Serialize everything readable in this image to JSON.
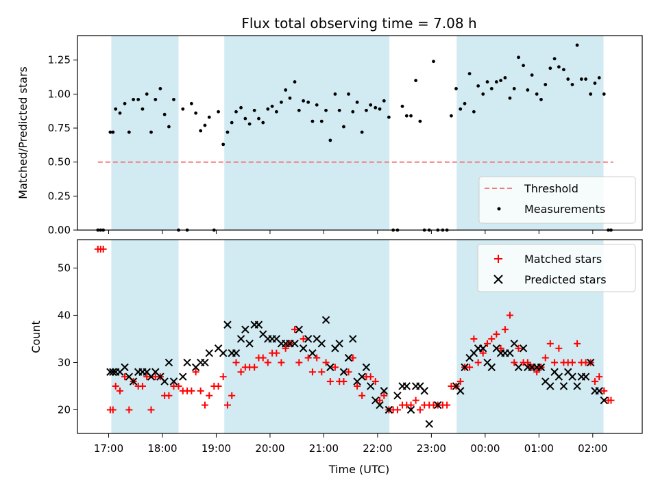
{
  "chart_data": {
    "title": "Flux total observing time = 7.08 h",
    "xlabel": "Time (UTC)",
    "x_unit": "hours (UTC, continuing past 24 into next day)",
    "xlim": [
      16.42,
      26.92
    ],
    "x_ticks": [
      {
        "value": 17,
        "label": "17:00"
      },
      {
        "value": 18,
        "label": "18:00"
      },
      {
        "value": 19,
        "label": "19:00"
      },
      {
        "value": 20,
        "label": "20:00"
      },
      {
        "value": 21,
        "label": "21:00"
      },
      {
        "value": 22,
        "label": "22:00"
      },
      {
        "value": 23,
        "label": "23:00"
      },
      {
        "value": 24,
        "label": "00:00"
      },
      {
        "value": 25,
        "label": "01:00"
      },
      {
        "value": 26,
        "label": "02:00"
      }
    ],
    "shaded_intervals": [
      [
        17.05,
        18.3
      ],
      [
        19.15,
        22.22
      ],
      [
        23.47,
        26.2
      ]
    ],
    "shade_color": "#add8e6",
    "panels": [
      {
        "type": "scatter",
        "ylabel": "Matched/Predicted stars",
        "ylim": [
          0,
          1.43
        ],
        "y_ticks": [
          "0.00",
          "0.25",
          "0.50",
          "0.75",
          "1.00",
          "1.25"
        ],
        "threshold": {
          "name": "Threshold",
          "value": 0.5,
          "x_range": [
            16.8,
            26.38
          ],
          "color": "#f08080"
        },
        "legend": {
          "position": "lower right",
          "entries": [
            "Threshold",
            "Measurements"
          ]
        },
        "series": [
          {
            "name": "Measurements",
            "color": "#000000",
            "x": [
              16.8,
              16.85,
              16.9,
              17.03,
              17.08,
              17.13,
              17.21,
              17.3,
              17.38,
              17.46,
              17.55,
              17.63,
              17.71,
              17.79,
              17.87,
              17.96,
              18.04,
              18.12,
              18.21,
              18.3,
              18.38,
              18.46,
              18.54,
              18.62,
              18.71,
              18.79,
              18.87,
              18.96,
              19.04,
              19.13,
              19.21,
              19.29,
              19.37,
              19.46,
              19.54,
              19.62,
              19.71,
              19.79,
              19.87,
              19.96,
              20.04,
              20.12,
              20.21,
              20.29,
              20.37,
              20.46,
              20.54,
              20.62,
              20.71,
              20.79,
              20.87,
              20.96,
              21.04,
              21.12,
              21.21,
              21.29,
              21.37,
              21.46,
              21.54,
              21.62,
              21.71,
              21.79,
              21.87,
              21.96,
              22.04,
              22.12,
              22.21,
              22.29,
              22.37,
              22.46,
              22.54,
              22.62,
              22.71,
              22.79,
              22.87,
              22.96,
              23.04,
              23.12,
              23.21,
              23.29,
              23.37,
              23.46,
              23.54,
              23.62,
              23.71,
              23.79,
              23.87,
              23.96,
              24.04,
              24.12,
              24.21,
              24.29,
              24.37,
              24.46,
              24.54,
              24.62,
              24.71,
              24.79,
              24.87,
              24.96,
              25.04,
              25.12,
              25.21,
              25.29,
              25.37,
              25.46,
              25.54,
              25.62,
              25.71,
              25.79,
              25.87,
              25.96,
              26.04,
              26.12,
              26.21,
              26.29,
              26.34
            ],
            "y": [
              0.0,
              0.0,
              0.0,
              0.72,
              0.72,
              0.89,
              0.86,
              0.93,
              0.72,
              0.96,
              0.96,
              0.89,
              1.0,
              0.72,
              0.96,
              1.04,
              0.85,
              0.76,
              0.96,
              0.0,
              0.89,
              0.0,
              0.93,
              0.86,
              0.73,
              0.77,
              0.83,
              0.0,
              0.87,
              0.63,
              0.72,
              0.79,
              0.87,
              0.9,
              0.82,
              0.78,
              0.88,
              0.82,
              0.79,
              0.89,
              0.91,
              0.87,
              0.94,
              1.03,
              0.97,
              1.09,
              0.88,
              0.95,
              0.94,
              0.8,
              0.92,
              0.8,
              0.88,
              0.66,
              1.0,
              0.88,
              0.76,
              1.0,
              0.87,
              0.94,
              0.72,
              0.88,
              0.92,
              0.9,
              0.89,
              0.95,
              0.83,
              0.0,
              0.0,
              0.91,
              0.84,
              0.84,
              1.1,
              0.8,
              0.0,
              0.0,
              1.24,
              0.0,
              0.0,
              0.0,
              0.84,
              1.04,
              0.89,
              0.93,
              1.15,
              0.87,
              1.06,
              1.0,
              1.09,
              1.04,
              1.09,
              1.1,
              1.12,
              0.97,
              1.04,
              1.27,
              1.21,
              1.03,
              1.14,
              1.0,
              0.96,
              1.07,
              1.19,
              1.26,
              1.2,
              1.18,
              1.11,
              1.07,
              1.36,
              1.11,
              1.11,
              1.0,
              1.08,
              1.12,
              1.0,
              0.0,
              0.0
            ]
          }
        ]
      },
      {
        "type": "scatter",
        "ylabel": "Count",
        "ylim": [
          15,
          56
        ],
        "y_ticks": [
          "20",
          "30",
          "40",
          "50"
        ],
        "legend": {
          "position": "upper right",
          "entries": [
            "Matched stars",
            "Predicted stars"
          ]
        },
        "series": [
          {
            "name": "Matched stars",
            "color": "#ff0000",
            "marker": "plus",
            "x": [
              16.8,
              16.85,
              16.9,
              17.03,
              17.08,
              17.13,
              17.21,
              17.3,
              17.38,
              17.46,
              17.55,
              17.63,
              17.71,
              17.79,
              17.87,
              17.96,
              18.04,
              18.12,
              18.21,
              18.3,
              18.38,
              18.46,
              18.54,
              18.62,
              18.71,
              18.79,
              18.87,
              18.96,
              19.04,
              19.13,
              19.21,
              19.29,
              19.37,
              19.46,
              19.54,
              19.62,
              19.71,
              19.79,
              19.87,
              19.96,
              20.04,
              20.12,
              20.21,
              20.29,
              20.37,
              20.46,
              20.54,
              20.62,
              20.71,
              20.79,
              20.87,
              20.96,
              21.04,
              21.12,
              21.21,
              21.29,
              21.37,
              21.46,
              21.54,
              21.62,
              21.71,
              21.79,
              21.87,
              21.96,
              22.04,
              22.12,
              22.21,
              22.29,
              22.37,
              22.46,
              22.54,
              22.62,
              22.71,
              22.79,
              22.87,
              22.96,
              23.04,
              23.12,
              23.21,
              23.29,
              23.37,
              23.46,
              23.54,
              23.62,
              23.71,
              23.79,
              23.87,
              23.96,
              24.04,
              24.12,
              24.21,
              24.29,
              24.37,
              24.46,
              24.54,
              24.62,
              24.71,
              24.79,
              24.87,
              24.96,
              25.04,
              25.12,
              25.21,
              25.29,
              25.37,
              25.46,
              25.54,
              25.62,
              25.71,
              25.79,
              25.87,
              25.96,
              26.04,
              26.12,
              26.21,
              26.29,
              26.34
            ],
            "y": [
              54,
              54,
              54,
              20,
              20,
              25,
              24,
              27,
              20,
              26,
              25,
              25,
              27,
              20,
              27,
              27,
              23,
              23,
              25,
              25,
              24,
              24,
              24,
              28,
              24,
              21,
              23,
              25,
              25,
              27,
              21,
              23,
              30,
              28,
              29,
              29,
              29,
              31,
              31,
              30,
              32,
              32,
              30,
              33,
              34,
              37,
              30,
              35,
              31,
              28,
              31,
              28,
              30,
              26,
              29,
              26,
              26,
              28,
              31,
              25,
              23,
              27,
              27,
              26,
              22,
              23,
              20,
              20,
              20,
              21,
              21,
              21,
              22,
              20,
              21,
              21,
              21,
              21,
              21,
              21,
              25,
              25,
              26,
              29,
              29,
              35,
              30,
              32,
              34,
              35,
              36,
              33,
              37,
              40,
              30,
              33,
              30,
              30,
              29,
              28,
              29,
              31,
              34,
              30,
              33,
              30,
              30,
              30,
              34,
              30,
              30,
              30,
              26,
              27,
              24,
              22,
              22
            ]
          },
          {
            "name": "Predicted stars",
            "color": "#000000",
            "marker": "x",
            "x": [
              17.03,
              17.08,
              17.13,
              17.21,
              17.3,
              17.38,
              17.46,
              17.55,
              17.63,
              17.71,
              17.79,
              17.87,
              17.96,
              18.04,
              18.12,
              18.21,
              18.38,
              18.46,
              18.62,
              18.71,
              18.79,
              18.87,
              19.04,
              19.13,
              19.21,
              19.29,
              19.37,
              19.46,
              19.54,
              19.62,
              19.71,
              19.79,
              19.87,
              19.96,
              20.04,
              20.12,
              20.21,
              20.29,
              20.37,
              20.46,
              20.54,
              20.62,
              20.71,
              20.79,
              20.87,
              20.96,
              21.04,
              21.12,
              21.21,
              21.29,
              21.37,
              21.46,
              21.54,
              21.62,
              21.71,
              21.79,
              21.87,
              21.96,
              22.04,
              22.12,
              22.21,
              22.37,
              22.46,
              22.54,
              22.62,
              22.71,
              22.79,
              22.87,
              22.96,
              23.12,
              23.46,
              23.54,
              23.62,
              23.71,
              23.79,
              23.87,
              23.96,
              24.04,
              24.12,
              24.21,
              24.29,
              24.37,
              24.46,
              24.54,
              24.62,
              24.71,
              24.79,
              24.87,
              24.96,
              25.04,
              25.12,
              25.21,
              25.29,
              25.37,
              25.46,
              25.54,
              25.62,
              25.71,
              25.79,
              25.87,
              25.96,
              26.04,
              26.12,
              26.21
            ],
            "y": [
              28,
              28,
              28,
              28,
              29,
              27,
              26,
              28,
              28,
              28,
              27,
              28,
              27,
              26,
              30,
              26,
              27,
              30,
              29,
              30,
              30,
              32,
              33,
              32,
              38,
              32,
              32,
              35,
              37,
              34,
              38,
              38,
              36,
              35,
              35,
              35,
              34,
              34,
              34,
              34,
              37,
              33,
              35,
              32,
              35,
              34,
              39,
              29,
              33,
              34,
              28,
              31,
              35,
              26,
              27,
              29,
              25,
              22,
              21,
              24,
              20,
              23,
              25,
              25,
              20,
              25,
              25,
              24,
              17,
              21,
              25,
              24,
              29,
              31,
              32,
              33,
              33,
              30,
              29,
              33,
              32,
              32,
              32,
              34,
              29,
              33,
              29,
              29,
              29,
              29,
              26,
              25,
              28,
              27,
              25,
              28,
              27,
              25,
              27,
              27,
              30,
              24,
              24,
              22
            ]
          }
        ]
      }
    ]
  }
}
